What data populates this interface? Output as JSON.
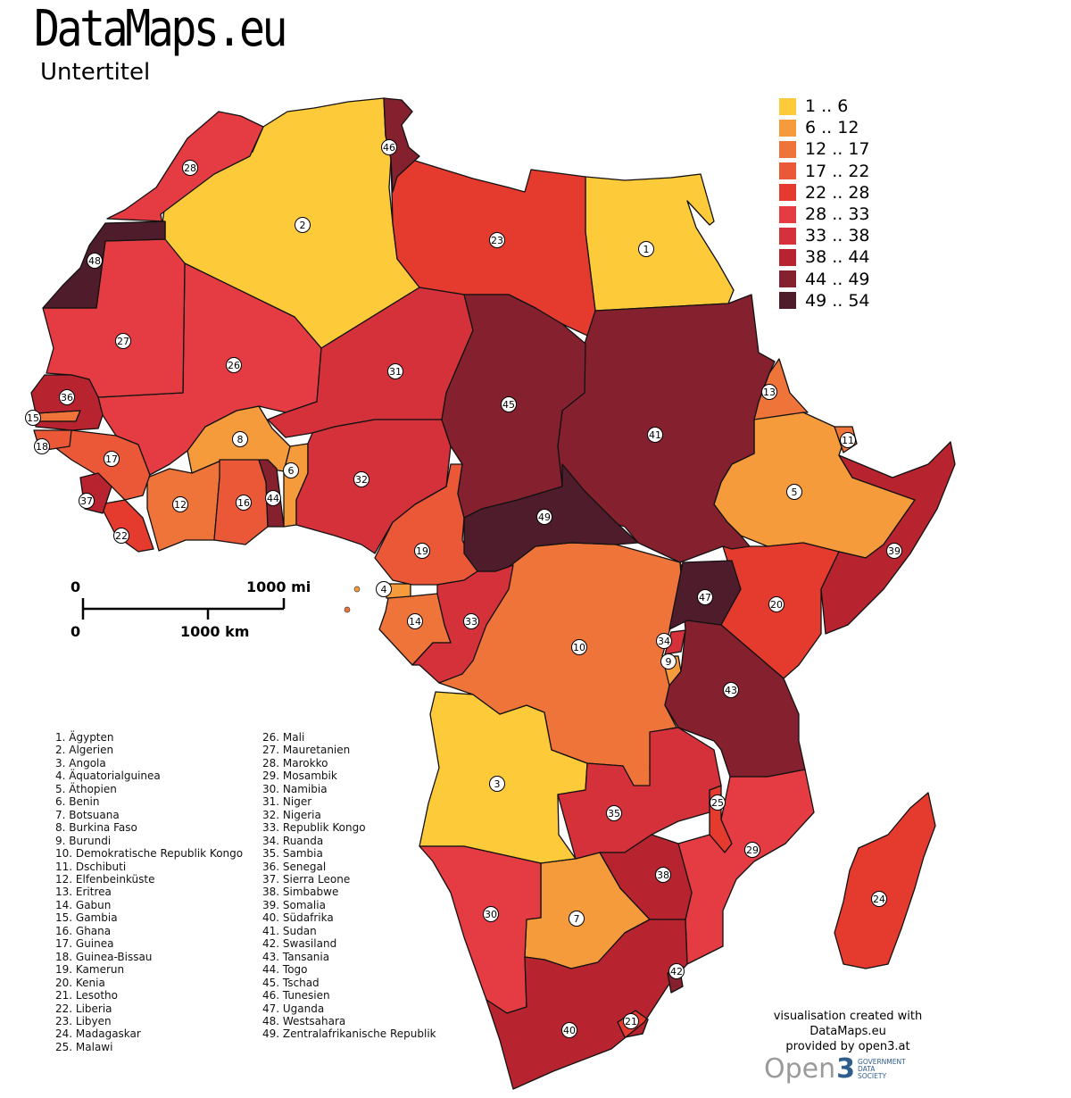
{
  "title": "DataMaps.eu",
  "subtitle": "Untertitel",
  "legend": [
    {
      "label": "1 .. 6",
      "color": "#fdcb3a"
    },
    {
      "label": "6 .. 12",
      "color": "#f59b3c"
    },
    {
      "label": "12 .. 17",
      "color": "#ef743a"
    },
    {
      "label": "17 .. 22",
      "color": "#ea5838"
    },
    {
      "label": "22 .. 28",
      "color": "#e53b2f"
    },
    {
      "label": "28 .. 33",
      "color": "#e43c42"
    },
    {
      "label": "33 .. 38",
      "color": "#d4313a"
    },
    {
      "label": "38 .. 44",
      "color": "#b7242f"
    },
    {
      "label": "44 .. 49",
      "color": "#85212f"
    },
    {
      "label": "49 .. 54",
      "color": "#4f1c2b"
    }
  ],
  "countries": [
    {
      "num": "1",
      "name": "Ägypten",
      "class": 0
    },
    {
      "num": "2",
      "name": "Algerien",
      "class": 0
    },
    {
      "num": "3",
      "name": "Angola",
      "class": 0
    },
    {
      "num": "4",
      "name": "Äquatorialguinea",
      "class": 1
    },
    {
      "num": "5",
      "name": "Äthopien",
      "class": 1
    },
    {
      "num": "6",
      "name": "Benin",
      "class": 1
    },
    {
      "num": "7",
      "name": "Botsuana",
      "class": 1
    },
    {
      "num": "8",
      "name": "Burkina Faso",
      "class": 1
    },
    {
      "num": "9",
      "name": "Burundi",
      "class": 1
    },
    {
      "num": "10",
      "name": "Demokratische Republik Kongo",
      "class": 2
    },
    {
      "num": "11",
      "name": "Dschibuti",
      "class": 2
    },
    {
      "num": "12",
      "name": "Elfenbeinküste",
      "class": 2
    },
    {
      "num": "13",
      "name": "Eritrea",
      "class": 2
    },
    {
      "num": "14",
      "name": "Gabun",
      "class": 2
    },
    {
      "num": "15",
      "name": "Gambia",
      "class": 2
    },
    {
      "num": "16",
      "name": "Ghana",
      "class": 3
    },
    {
      "num": "17",
      "name": "Guinea",
      "class": 3
    },
    {
      "num": "18",
      "name": "Guinea-Bissau",
      "class": 3
    },
    {
      "num": "19",
      "name": "Kamerun",
      "class": 3
    },
    {
      "num": "20",
      "name": "Kenia",
      "class": 4
    },
    {
      "num": "21",
      "name": "Lesotho",
      "class": 4
    },
    {
      "num": "22",
      "name": "Liberia",
      "class": 4
    },
    {
      "num": "23",
      "name": "Libyen",
      "class": 4
    },
    {
      "num": "24",
      "name": "Madagaskar",
      "class": 4
    },
    {
      "num": "25",
      "name": "Malawi",
      "class": 4
    },
    {
      "num": "26",
      "name": "Mali",
      "class": 5
    },
    {
      "num": "27",
      "name": "Mauretanien",
      "class": 5
    },
    {
      "num": "28",
      "name": "Marokko",
      "class": 5
    },
    {
      "num": "29",
      "name": "Mosambik",
      "class": 5
    },
    {
      "num": "30",
      "name": "Namibia",
      "class": 5
    },
    {
      "num": "31",
      "name": "Niger",
      "class": 6
    },
    {
      "num": "32",
      "name": "Nigeria",
      "class": 6
    },
    {
      "num": "33",
      "name": "Republik Kongo",
      "class": 6
    },
    {
      "num": "34",
      "name": "Ruanda",
      "class": 6
    },
    {
      "num": "35",
      "name": "Sambia",
      "class": 6
    },
    {
      "num": "36",
      "name": "Senegal",
      "class": 7
    },
    {
      "num": "37",
      "name": "Sierra Leone",
      "class": 7
    },
    {
      "num": "38",
      "name": "Simbabwe",
      "class": 7
    },
    {
      "num": "39",
      "name": "Somalia",
      "class": 7
    },
    {
      "num": "40",
      "name": "Südafrika",
      "class": 7
    },
    {
      "num": "41",
      "name": "Sudan",
      "class": 8
    },
    {
      "num": "42",
      "name": "Swasiland",
      "class": 8
    },
    {
      "num": "43",
      "name": "Tansania",
      "class": 8
    },
    {
      "num": "44",
      "name": "Togo",
      "class": 8
    },
    {
      "num": "45",
      "name": "Tschad",
      "class": 8
    },
    {
      "num": "46",
      "name": "Tunesien",
      "class": 8
    },
    {
      "num": "47",
      "name": "Uganda",
      "class": 9
    },
    {
      "num": "48",
      "name": "Westsahara",
      "class": 9
    },
    {
      "num": "49",
      "name": "Zentralafrikanische Republik",
      "class": 9
    }
  ],
  "scale": {
    "mi_zero": "0",
    "mi_label": "1000 mi",
    "km_zero": "0",
    "km_label": "1000 km"
  },
  "credits": {
    "line1": "visualisation created with",
    "line2": "DataMaps.eu",
    "line3": "provided by open3.at",
    "logo_word": "Open",
    "logo_num": "3",
    "logo_sub1": "GOVERNMENT",
    "logo_sub2": "DATA",
    "logo_sub3": "SOCIETY"
  }
}
